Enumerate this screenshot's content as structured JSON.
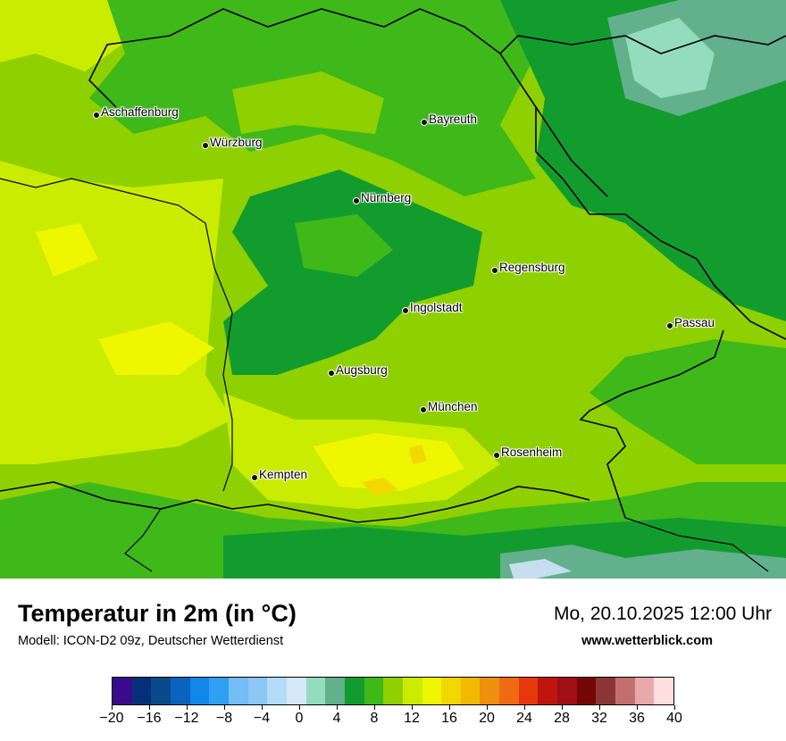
{
  "map": {
    "cities": [
      {
        "name": "Aschaffenburg"
      },
      {
        "name": "Würzburg"
      },
      {
        "name": "Bayreuth"
      },
      {
        "name": "Nürnberg"
      },
      {
        "name": "Regensburg"
      },
      {
        "name": "Ingolstadt"
      },
      {
        "name": "Passau"
      },
      {
        "name": "Augsburg"
      },
      {
        "name": "München"
      },
      {
        "name": "Rosenheim"
      },
      {
        "name": "Kempten"
      }
    ],
    "field_colors": {
      "light_green": "#8fd000",
      "mid_green": "#3fb81a",
      "dark_green": "#129c2e",
      "pale_teal": "#62b08c",
      "light_teal": "#93dcbd",
      "yellow_green": "#c9ec00",
      "yellow": "#eef700",
      "orange_yellow": "#f2d800",
      "light_blue": "#c6def0",
      "border": "#000000"
    }
  },
  "footer": {
    "title": "Temperatur in 2m (in °C)",
    "model": "Modell: ICON-D2 09z, Deutscher Wetterdienst",
    "datetime": "Mo, 20.10.2025 12:00 Uhr",
    "website": "www.wetterblick.com"
  },
  "legend": {
    "colors": [
      "#3a0a8c",
      "#062f7a",
      "#0a4a8a",
      "#0a63bd",
      "#1287ea",
      "#2fa0f2",
      "#74bdf5",
      "#8cc7f5",
      "#b4dbf8",
      "#d4e8f8",
      "#93dcbd",
      "#62b08c",
      "#129c2e",
      "#3fb81a",
      "#8fd000",
      "#c9ec00",
      "#eef700",
      "#f2d800",
      "#f1b900",
      "#f0900f",
      "#ef6b13",
      "#e6380c",
      "#c0140f",
      "#a00e16",
      "#750606",
      "#8b3535",
      "#c26f6f",
      "#e8a9a9",
      "#ffdede"
    ],
    "tick_labels": [
      "−20",
      "−16",
      "−12",
      "−8",
      "−4",
      "0",
      "4",
      "8",
      "12",
      "16",
      "20",
      "24",
      "28",
      "32",
      "36",
      "40"
    ]
  }
}
